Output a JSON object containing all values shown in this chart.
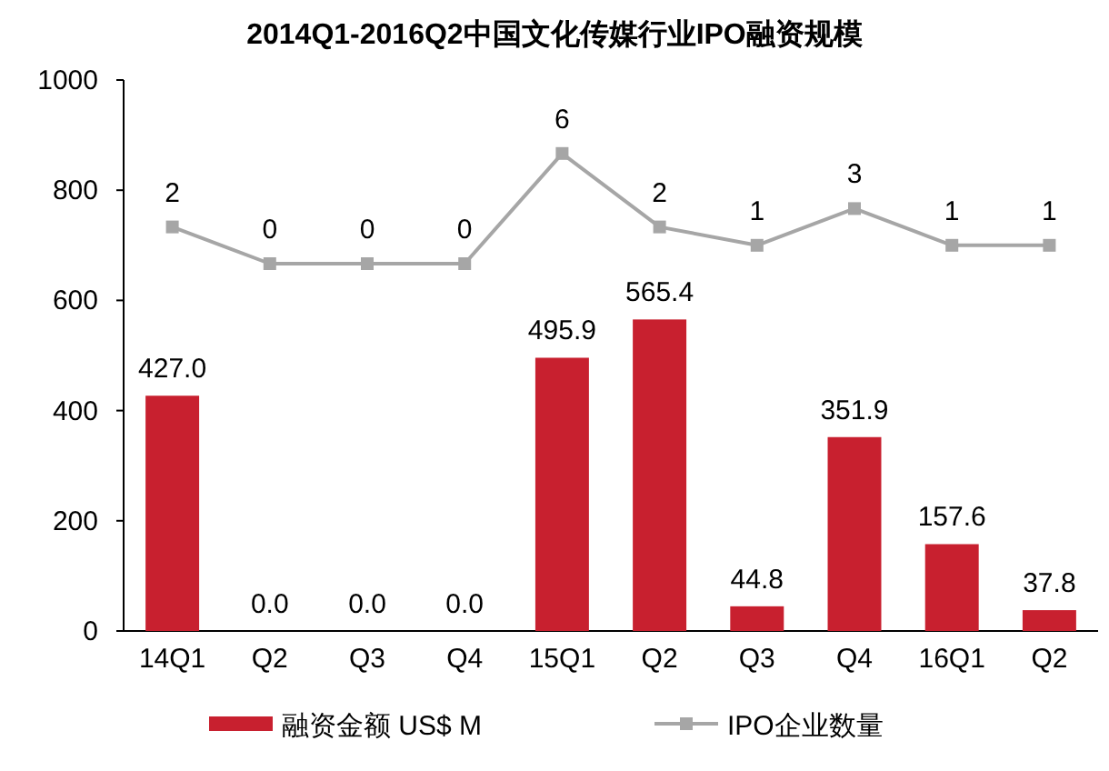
{
  "chart_data": {
    "type": "bar",
    "title": "2014Q1-2016Q2中国文化传媒行业IPO融资规模",
    "categories": [
      "14Q1",
      "Q2",
      "Q3",
      "Q4",
      "15Q1",
      "Q2",
      "Q3",
      "Q4",
      "16Q1",
      "Q2"
    ],
    "series": [
      {
        "name": "融资金额 US$ M",
        "color": "#c8202f",
        "values": [
          427.0,
          0.0,
          0.0,
          0.0,
          495.9,
          565.4,
          44.8,
          351.9,
          157.6,
          37.8
        ],
        "value_labels": [
          "427.0",
          "0.0",
          "0.0",
          "0.0",
          "495.9",
          "565.4",
          "44.8",
          "351.9",
          "157.6",
          "37.8"
        ]
      },
      {
        "name": "IPO企业数量",
        "type": "line",
        "axis": "y2",
        "color": "#a6a6a6",
        "marker": "square",
        "values": [
          2,
          0,
          0,
          0,
          6,
          2,
          1,
          3,
          1,
          1
        ],
        "value_labels": [
          "2",
          "0",
          "0",
          "0",
          "6",
          "2",
          "1",
          "3",
          "1",
          "1"
        ]
      }
    ],
    "ylim": [
      0,
      1000
    ],
    "yticks": [
      0,
      200,
      400,
      600,
      800,
      1000
    ],
    "y2lim": [
      -20,
      10
    ],
    "grid": false,
    "legend": "bottom"
  }
}
